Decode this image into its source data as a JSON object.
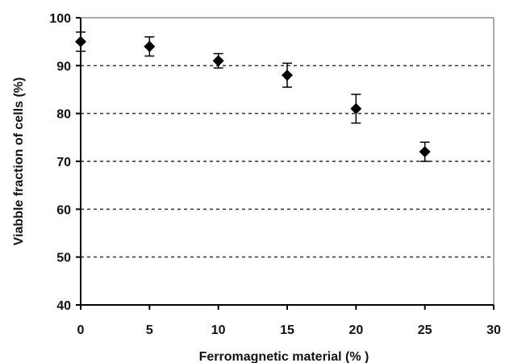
{
  "chart_data": {
    "type": "scatter",
    "xlabel": "Ferromagnetic material (% )",
    "ylabel": "Viabble fraction of cells (%)",
    "xlim": [
      0,
      30
    ],
    "ylim": [
      40,
      100
    ],
    "x_ticks": [
      "0",
      "5",
      "10",
      "15",
      "20",
      "25",
      "30"
    ],
    "y_ticks": [
      "40",
      "50",
      "60",
      "70",
      "80",
      "90",
      "100"
    ],
    "grid": "horizontal dashed",
    "marker": "diamond",
    "marker_color": "#000000",
    "points": [
      {
        "x": 0,
        "y": 95,
        "err": 2.0
      },
      {
        "x": 5,
        "y": 94,
        "err": 2.0
      },
      {
        "x": 10,
        "y": 91,
        "err": 1.5
      },
      {
        "x": 15,
        "y": 88,
        "err": 2.5
      },
      {
        "x": 20,
        "y": 81,
        "err": 3.0
      },
      {
        "x": 25,
        "y": 72,
        "err": 2.0
      }
    ]
  }
}
